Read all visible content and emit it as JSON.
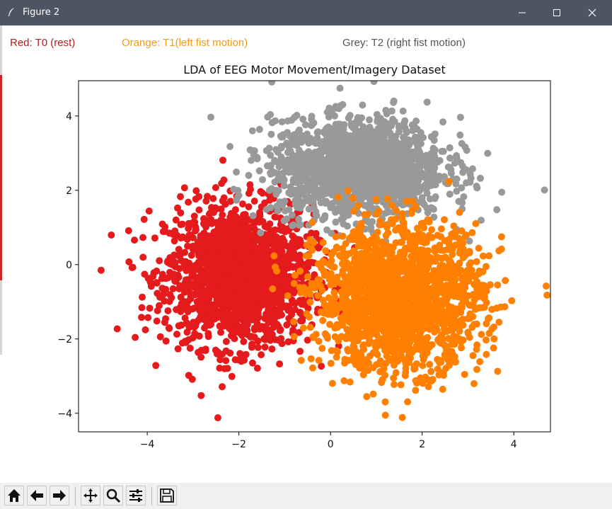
{
  "window": {
    "title": "Figure 2",
    "icon": "feather-icon"
  },
  "legend": [
    {
      "text": "Red: T0 (rest)",
      "color": "#b71c1c"
    },
    {
      "text": "Orange: T1(left fist motion)",
      "color": "#f39c12"
    },
    {
      "text": "Grey: T2 (right fist motion)",
      "color": "#555555"
    }
  ],
  "toolbar": {
    "buttons": [
      {
        "name": "home-icon",
        "tooltip": "Home"
      },
      {
        "name": "back-icon",
        "tooltip": "Back"
      },
      {
        "name": "forward-icon",
        "tooltip": "Forward"
      },
      {
        "name": "pan-icon",
        "tooltip": "Pan"
      },
      {
        "name": "zoom-icon",
        "tooltip": "Zoom"
      },
      {
        "name": "configure-subplots-icon",
        "tooltip": "Subplots"
      },
      {
        "name": "save-icon",
        "tooltip": "Save"
      }
    ]
  },
  "chart_data": {
    "type": "scatter",
    "title": "LDA of EEG Motor Movement/Imagery Dataset",
    "xlabel": "",
    "ylabel": "",
    "xlim": [
      -5.5,
      4.8
    ],
    "ylim": [
      -4.5,
      4.95
    ],
    "xticks": [
      -4,
      -2,
      0,
      2,
      4
    ],
    "yticks": [
      -4,
      -2,
      0,
      2,
      4
    ],
    "grid": false,
    "series": [
      {
        "color": "#e41a1c",
        "center": [
          -2.0,
          -0.3
        ],
        "spread": [
          0.8,
          0.95
        ]
      },
      {
        "color": "#999999",
        "center": [
          0.6,
          2.6
        ],
        "spread": [
          0.95,
          0.65
        ]
      },
      {
        "color": "#ff7f00",
        "center": [
          1.5,
          -0.9
        ],
        "spread": [
          0.9,
          0.95
        ]
      }
    ]
  }
}
